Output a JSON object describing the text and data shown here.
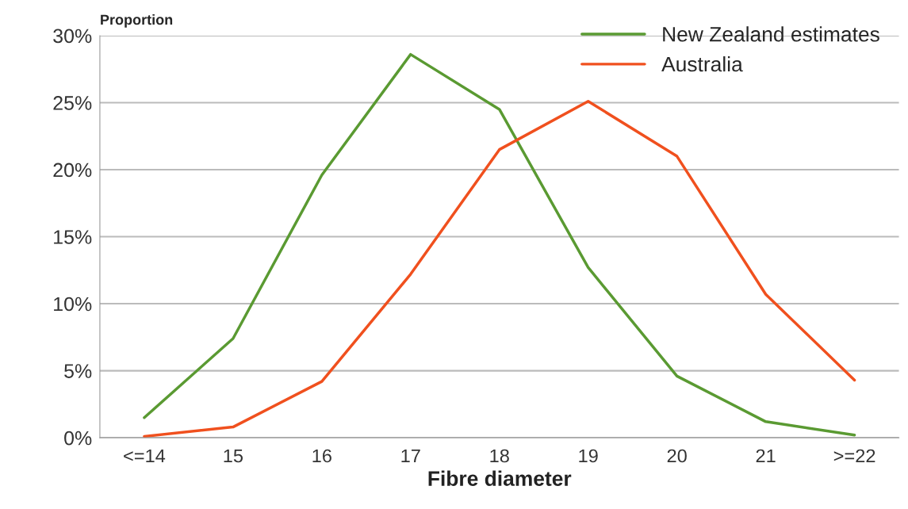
{
  "chart_data": {
    "type": "line",
    "xlabel": "Fibre diameter",
    "ylabel": "Proportion",
    "categories": [
      "<=14",
      "15",
      "16",
      "17",
      "18",
      "19",
      "20",
      "21",
      ">=22"
    ],
    "series": [
      {
        "name": "New Zealand estimates",
        "color": "#5a9a32",
        "values": [
          1.5,
          7.4,
          19.6,
          28.6,
          24.5,
          12.7,
          4.6,
          1.2,
          0.2
        ]
      },
      {
        "name": "Australia",
        "color": "#f0501e",
        "values": [
          0.1,
          0.8,
          4.2,
          12.2,
          21.5,
          25.1,
          21.0,
          10.7,
          4.3
        ]
      }
    ],
    "ylim": [
      0,
      30
    ],
    "yticks": [
      {
        "value": 0,
        "label": "0%"
      },
      {
        "value": 5,
        "label": "5%"
      },
      {
        "value": 10,
        "label": "10%"
      },
      {
        "value": 15,
        "label": "15%"
      },
      {
        "value": 20,
        "label": "20%"
      },
      {
        "value": 25,
        "label": "25%"
      },
      {
        "value": 30,
        "label": "30%"
      }
    ],
    "grid": "y",
    "legend": "top right",
    "marker": "none",
    "line_style": "solid"
  }
}
